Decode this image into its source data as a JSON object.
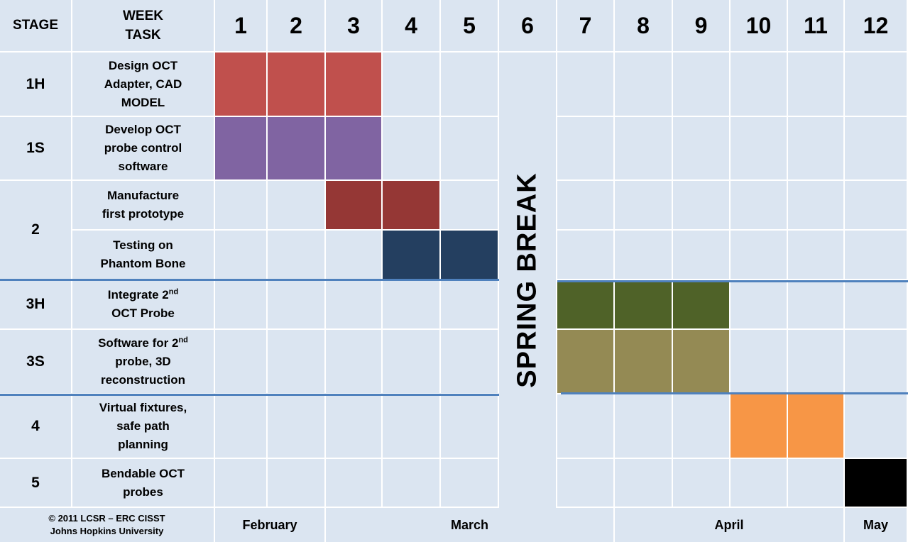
{
  "header": {
    "stage_label": "STAGE",
    "week_label": "WEEK",
    "task_label": "TASK",
    "weeks": [
      "1",
      "2",
      "3",
      "4",
      "5",
      "6",
      "7",
      "8",
      "9",
      "10",
      "11",
      "12"
    ]
  },
  "spring_break_label": "SPRING BREAK",
  "stages": [
    {
      "label": "1H"
    },
    {
      "label": "1S"
    },
    {
      "label": "2"
    },
    {
      "label": "3H"
    },
    {
      "label": "3S"
    },
    {
      "label": "4"
    },
    {
      "label": "5"
    }
  ],
  "tasks": [
    {
      "name": "Design OCT Adapter, CAD MODEL",
      "lines": [
        "Design OCT",
        "Adapter, CAD",
        "MODEL"
      ],
      "stage": "1H",
      "weeks": [
        1,
        3
      ],
      "color": "#c0504d"
    },
    {
      "name": "Develop OCT probe control software",
      "lines": [
        "Develop OCT",
        "probe control",
        "software"
      ],
      "stage": "1S",
      "weeks": [
        1,
        3
      ],
      "color": "#8064a2"
    },
    {
      "name": "Manufacture first prototype",
      "lines": [
        "Manufacture",
        "first prototype"
      ],
      "stage": "2",
      "weeks": [
        3,
        4
      ],
      "color": "#953735"
    },
    {
      "name": "Testing on Phantom Bone",
      "lines": [
        "Testing on",
        "Phantom Bone"
      ],
      "stage": "2",
      "weeks": [
        4,
        5
      ],
      "color": "#243f60"
    },
    {
      "name": "Integrate 2nd OCT Probe",
      "lines": [
        "Integrate 2",
        "OCT Probe"
      ],
      "sup": "nd",
      "sup_line": 0,
      "stage": "3H",
      "weeks": [
        7,
        9
      ],
      "color": "#4f6228"
    },
    {
      "name": "Software for 2nd probe, 3D reconstruction",
      "lines": [
        "Software for 2",
        "probe, 3D",
        "reconstruction"
      ],
      "sup": "nd",
      "sup_line": 0,
      "stage": "3S",
      "weeks": [
        7,
        9
      ],
      "color": "#948a54"
    },
    {
      "name": "Virtual fixtures, safe path planning",
      "lines": [
        "Virtual fixtures,",
        "safe path",
        "planning"
      ],
      "stage": "4",
      "weeks": [
        10,
        11
      ],
      "color": "#f79646"
    },
    {
      "name": "Bendable OCT probes",
      "lines": [
        "Bendable OCT",
        "probes"
      ],
      "stage": "5",
      "weeks": [
        12,
        12
      ],
      "color": "#000000"
    }
  ],
  "footer": {
    "copyright_line1": "© 2011 LCSR – ERC  CISST",
    "copyright_line2": "Johns Hopkins University",
    "months": [
      "February",
      "March",
      "April",
      "May"
    ]
  },
  "colors": {
    "cell_bg": "#dbe5f1",
    "grid_line": "#ffffff",
    "divider": "#4f81bd"
  }
}
